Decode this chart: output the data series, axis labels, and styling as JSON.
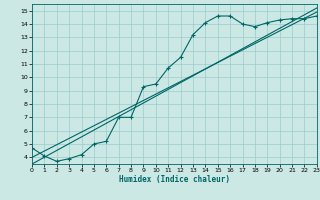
{
  "xlabel": "Humidex (Indice chaleur)",
  "bg_color": "#cce8e4",
  "grid_color": "#99cccc",
  "line_color": "#006666",
  "xlim": [
    0,
    23
  ],
  "ylim": [
    3.5,
    15.5
  ],
  "xticks": [
    0,
    1,
    2,
    3,
    4,
    5,
    6,
    7,
    8,
    9,
    10,
    11,
    12,
    13,
    14,
    15,
    16,
    17,
    18,
    19,
    20,
    21,
    22,
    23
  ],
  "yticks": [
    4,
    5,
    6,
    7,
    8,
    9,
    10,
    11,
    12,
    13,
    14,
    15
  ],
  "line1_x": [
    0,
    1,
    2,
    3,
    4,
    5,
    6,
    7,
    8,
    9,
    10,
    11,
    12,
    13,
    14,
    15,
    16,
    17,
    18,
    19,
    20,
    21,
    22,
    23
  ],
  "line1_y": [
    4.7,
    4.1,
    3.7,
    3.9,
    4.2,
    5.0,
    5.2,
    7.0,
    7.0,
    9.3,
    9.5,
    10.7,
    11.5,
    13.2,
    14.1,
    14.6,
    14.6,
    14.0,
    13.8,
    14.1,
    14.3,
    14.4,
    14.4,
    14.6
  ],
  "line2_x": [
    0,
    23
  ],
  "line2_y": [
    4.0,
    14.9
  ],
  "line3_x": [
    0,
    23
  ],
  "line3_y": [
    3.5,
    15.2
  ]
}
